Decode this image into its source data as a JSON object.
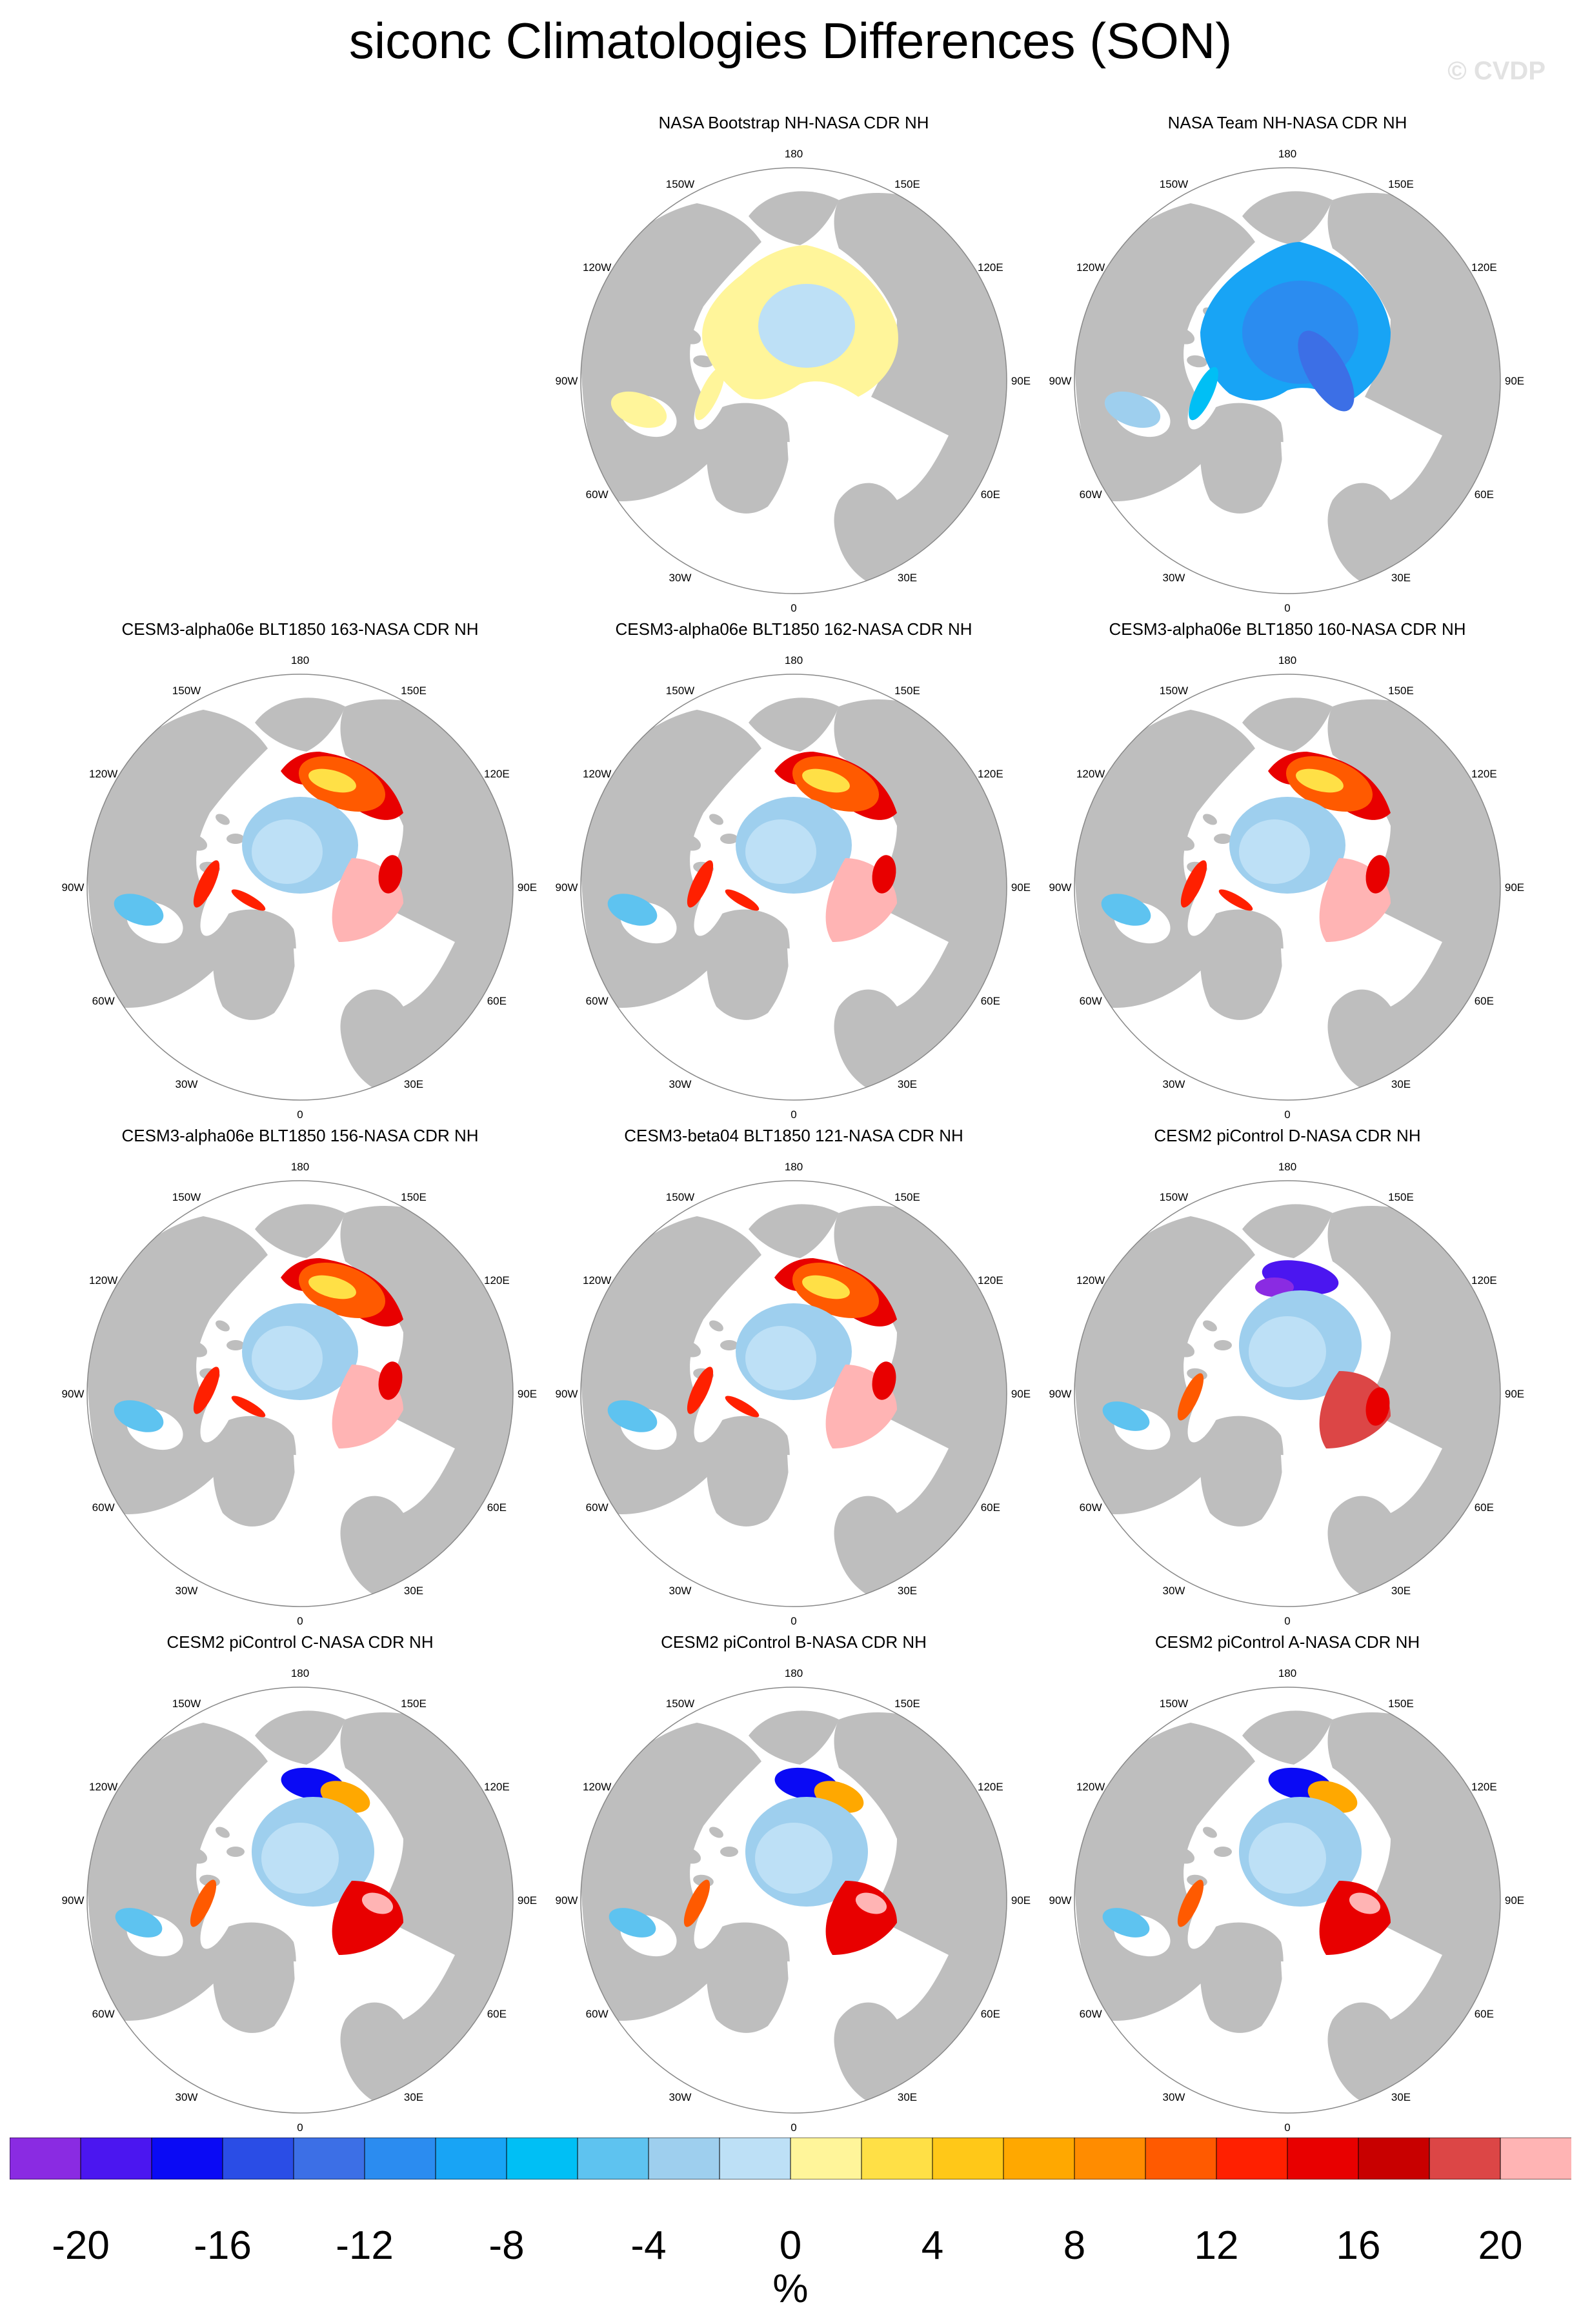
{
  "title": "siconc Climatologies Differences (SON)",
  "watermark": "© CVDP",
  "lon_labels": [
    "180",
    "150E",
    "120E",
    "90E",
    "60E",
    "30E",
    "0",
    "30W",
    "60W",
    "90W",
    "120W",
    "150W"
  ],
  "panels": [
    {
      "title": "NASA Bootstrap NH-NASA CDR NH",
      "pattern": "bootstrap"
    },
    {
      "title": "NASA Team NH-NASA CDR NH",
      "pattern": "team"
    },
    {
      "title": "CESM3-alpha06e BLT1850 163-NASA CDR NH",
      "pattern": "model_red"
    },
    {
      "title": "CESM3-alpha06e BLT1850 162-NASA CDR NH",
      "pattern": "model_red"
    },
    {
      "title": "CESM3-alpha06e BLT1850 160-NASA CDR NH",
      "pattern": "model_red"
    },
    {
      "title": "CESM3-alpha06e BLT1850 156-NASA CDR NH",
      "pattern": "model_red"
    },
    {
      "title": "CESM3-beta04 BLT1850 121-NASA CDR NH",
      "pattern": "model_red"
    },
    {
      "title": "CESM2 piControl D-NASA CDR NH",
      "pattern": "cesm2_d"
    },
    {
      "title": "CESM2 piControl C-NASA CDR NH",
      "pattern": "cesm2"
    },
    {
      "title": "CESM2 piControl B-NASA CDR NH",
      "pattern": "cesm2"
    },
    {
      "title": "CESM2 piControl A-NASA CDR NH",
      "pattern": "cesm2"
    }
  ],
  "colorbar": {
    "colors": [
      "#8a2be2",
      "#4b16f0",
      "#0a0af5",
      "#2a4de6",
      "#3c6fe6",
      "#2b8cf0",
      "#18a4f5",
      "#00bff5",
      "#5ec3f0",
      "#9ecfee",
      "#bde0f6",
      "#fff59a",
      "#ffe046",
      "#ffc818",
      "#ffa800",
      "#ff8c00",
      "#ff5a00",
      "#ff2000",
      "#e80000",
      "#c80000",
      "#dc4646",
      "#ffb4b4"
    ],
    "labels": [
      "-20",
      "-16",
      "-12",
      "-8",
      "-4",
      "0",
      "4",
      "8",
      "12",
      "16",
      "20"
    ],
    "unit": "%"
  },
  "colors": {
    "land": "#bebebe",
    "ocean": "#ffffff",
    "border": "#888888"
  }
}
